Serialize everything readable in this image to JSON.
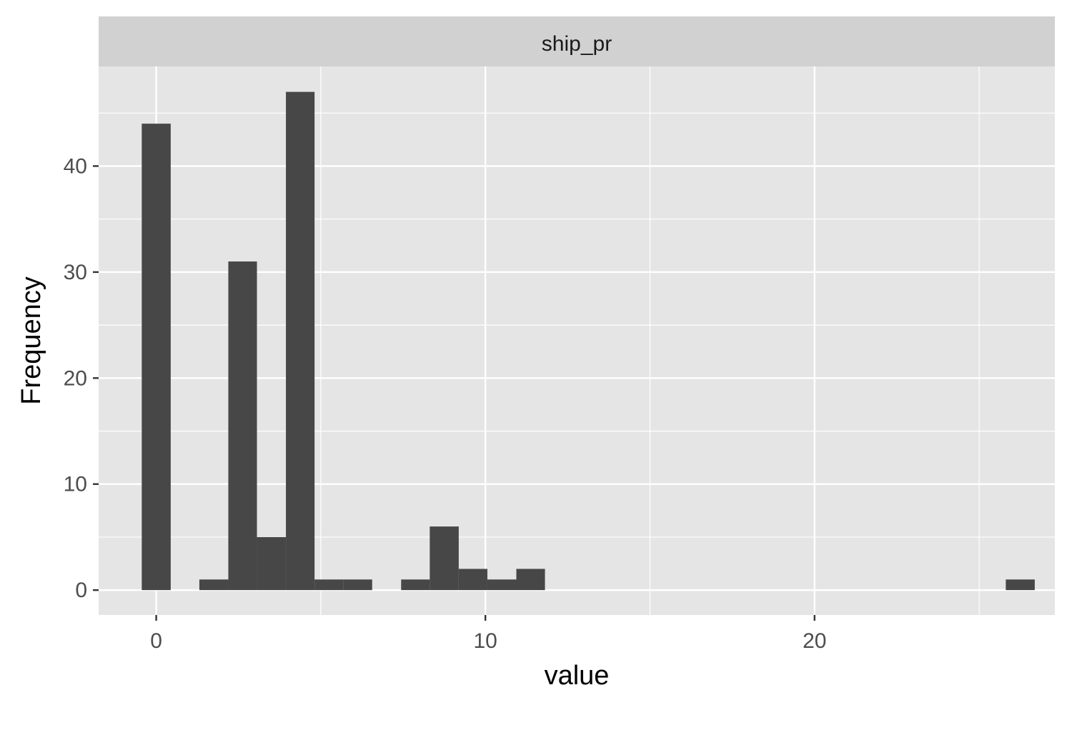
{
  "chart_data": {
    "type": "bar",
    "facet_label": "ship_pr",
    "xlabel": "value",
    "ylabel": "Frequency",
    "xlim": [
      -1.75,
      27.3
    ],
    "ylim": [
      -2.35,
      49.4
    ],
    "x_ticks": [
      0,
      10,
      20
    ],
    "x_tick_labels": [
      "0",
      "10",
      "20"
    ],
    "y_ticks": [
      0,
      10,
      20,
      30,
      40
    ],
    "y_tick_labels": [
      "0",
      "10",
      "20",
      "30",
      "40"
    ],
    "grid": true,
    "bin_width": 0.875,
    "bins": [
      {
        "x0": -0.44,
        "x1": 0.44,
        "count": 44
      },
      {
        "x0": 1.31,
        "x1": 2.19,
        "count": 1
      },
      {
        "x0": 2.19,
        "x1": 3.06,
        "count": 31
      },
      {
        "x0": 3.06,
        "x1": 3.94,
        "count": 5
      },
      {
        "x0": 3.94,
        "x1": 4.81,
        "count": 47
      },
      {
        "x0": 4.81,
        "x1": 5.69,
        "count": 1
      },
      {
        "x0": 5.69,
        "x1": 6.56,
        "count": 1
      },
      {
        "x0": 7.44,
        "x1": 8.31,
        "count": 1
      },
      {
        "x0": 8.31,
        "x1": 9.19,
        "count": 6
      },
      {
        "x0": 9.19,
        "x1": 10.06,
        "count": 2
      },
      {
        "x0": 10.06,
        "x1": 10.94,
        "count": 1
      },
      {
        "x0": 10.94,
        "x1": 11.81,
        "count": 2
      },
      {
        "x0": 25.81,
        "x1": 26.69,
        "count": 1
      }
    ],
    "colors": {
      "panel": "#e5e5e5",
      "strip": "#d1d1d1",
      "grid": "#ffffff",
      "bar": "#474747"
    }
  }
}
